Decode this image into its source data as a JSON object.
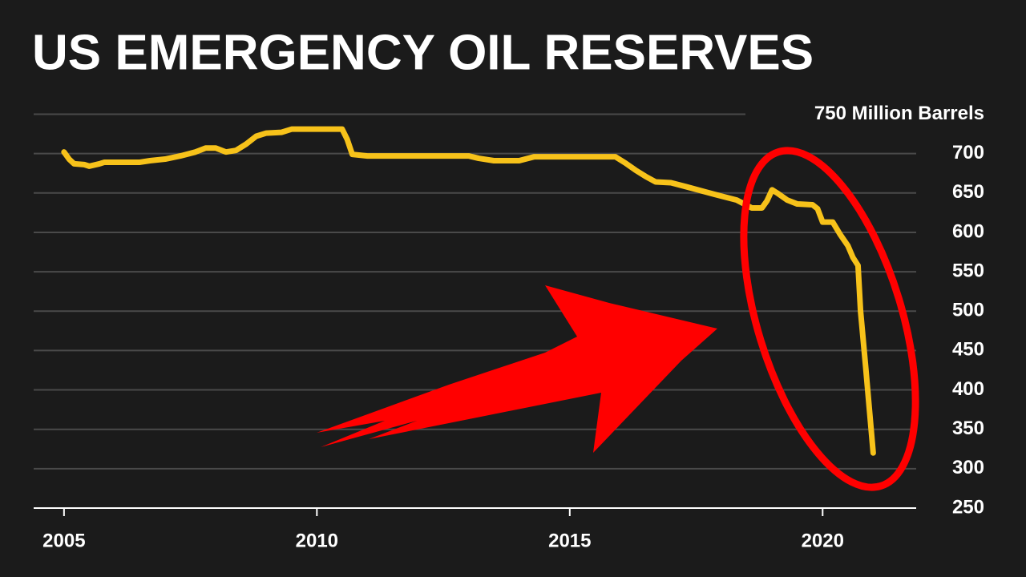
{
  "chart_data": {
    "type": "line",
    "title": "US EMERGENCY OIL RESERVES",
    "x": [
      2005.0,
      2005.1,
      2005.2,
      2005.4,
      2005.5,
      2005.7,
      2005.8,
      2006.5,
      2006.7,
      2007.0,
      2007.3,
      2007.6,
      2007.8,
      2008.0,
      2008.2,
      2008.4,
      2008.6,
      2008.8,
      2009.0,
      2009.3,
      2009.5,
      2010.0,
      2010.5,
      2010.6,
      2010.7,
      2011.0,
      2013.0,
      2013.2,
      2013.5,
      2014.0,
      2014.3,
      2015.0,
      2015.9,
      2016.1,
      2016.3,
      2016.5,
      2016.7,
      2017.0,
      2017.3,
      2017.7,
      2018.0,
      2018.3,
      2018.6,
      2018.8,
      2018.9,
      2019.0,
      2019.1,
      2019.3,
      2019.5,
      2019.8,
      2019.9,
      2020.0,
      2020.2,
      2020.35,
      2020.5,
      2020.6,
      2020.7,
      2020.75,
      2020.85,
      2021.0
    ],
    "values": [
      702,
      693,
      687,
      686,
      684,
      687,
      689,
      689,
      691,
      693,
      697,
      702,
      707,
      707,
      702,
      704,
      712,
      722,
      726,
      727,
      731,
      731,
      731,
      718,
      699,
      697,
      697,
      694,
      691,
      691,
      696,
      696,
      696,
      688,
      679,
      671,
      664,
      663,
      658,
      651,
      646,
      641,
      631,
      631,
      640,
      654,
      650,
      641,
      636,
      635,
      630,
      613,
      613,
      597,
      583,
      568,
      558,
      500,
      430,
      320
    ],
    "color": "#f7c21a",
    "xlim": [
      2004.4,
      2021.85
    ],
    "ylim": [
      250,
      780
    ],
    "xticks": [
      2005,
      2010,
      2015,
      2020
    ],
    "yticks": [
      250,
      300,
      350,
      400,
      450,
      500,
      550,
      600,
      650,
      700,
      {
        "value": 750,
        "label": "750 Million Barrels"
      }
    ],
    "grid": true
  }
}
